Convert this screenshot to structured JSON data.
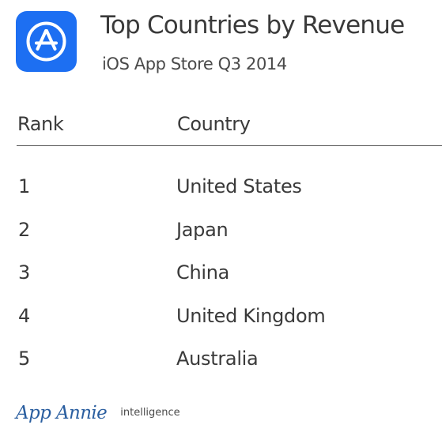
{
  "header": {
    "icon": "app-store-icon",
    "icon_color": "#1d6ff2",
    "title": "Top Countries by Revenue",
    "subtitle": "iOS App Store Q3 2014"
  },
  "chart_data": {
    "type": "table",
    "title": "Top Countries by Revenue",
    "subtitle": "iOS App Store Q3 2014",
    "columns": [
      "Rank",
      "Country"
    ],
    "rows": [
      {
        "rank": "1",
        "country": "United States"
      },
      {
        "rank": "2",
        "country": "Japan"
      },
      {
        "rank": "3",
        "country": "China"
      },
      {
        "rank": "4",
        "country": "United Kingdom"
      },
      {
        "rank": "5",
        "country": "Australia"
      }
    ]
  },
  "footer": {
    "brand": "App Annie",
    "tagline": "intelligence",
    "brand_color": "#2b5fa0"
  }
}
